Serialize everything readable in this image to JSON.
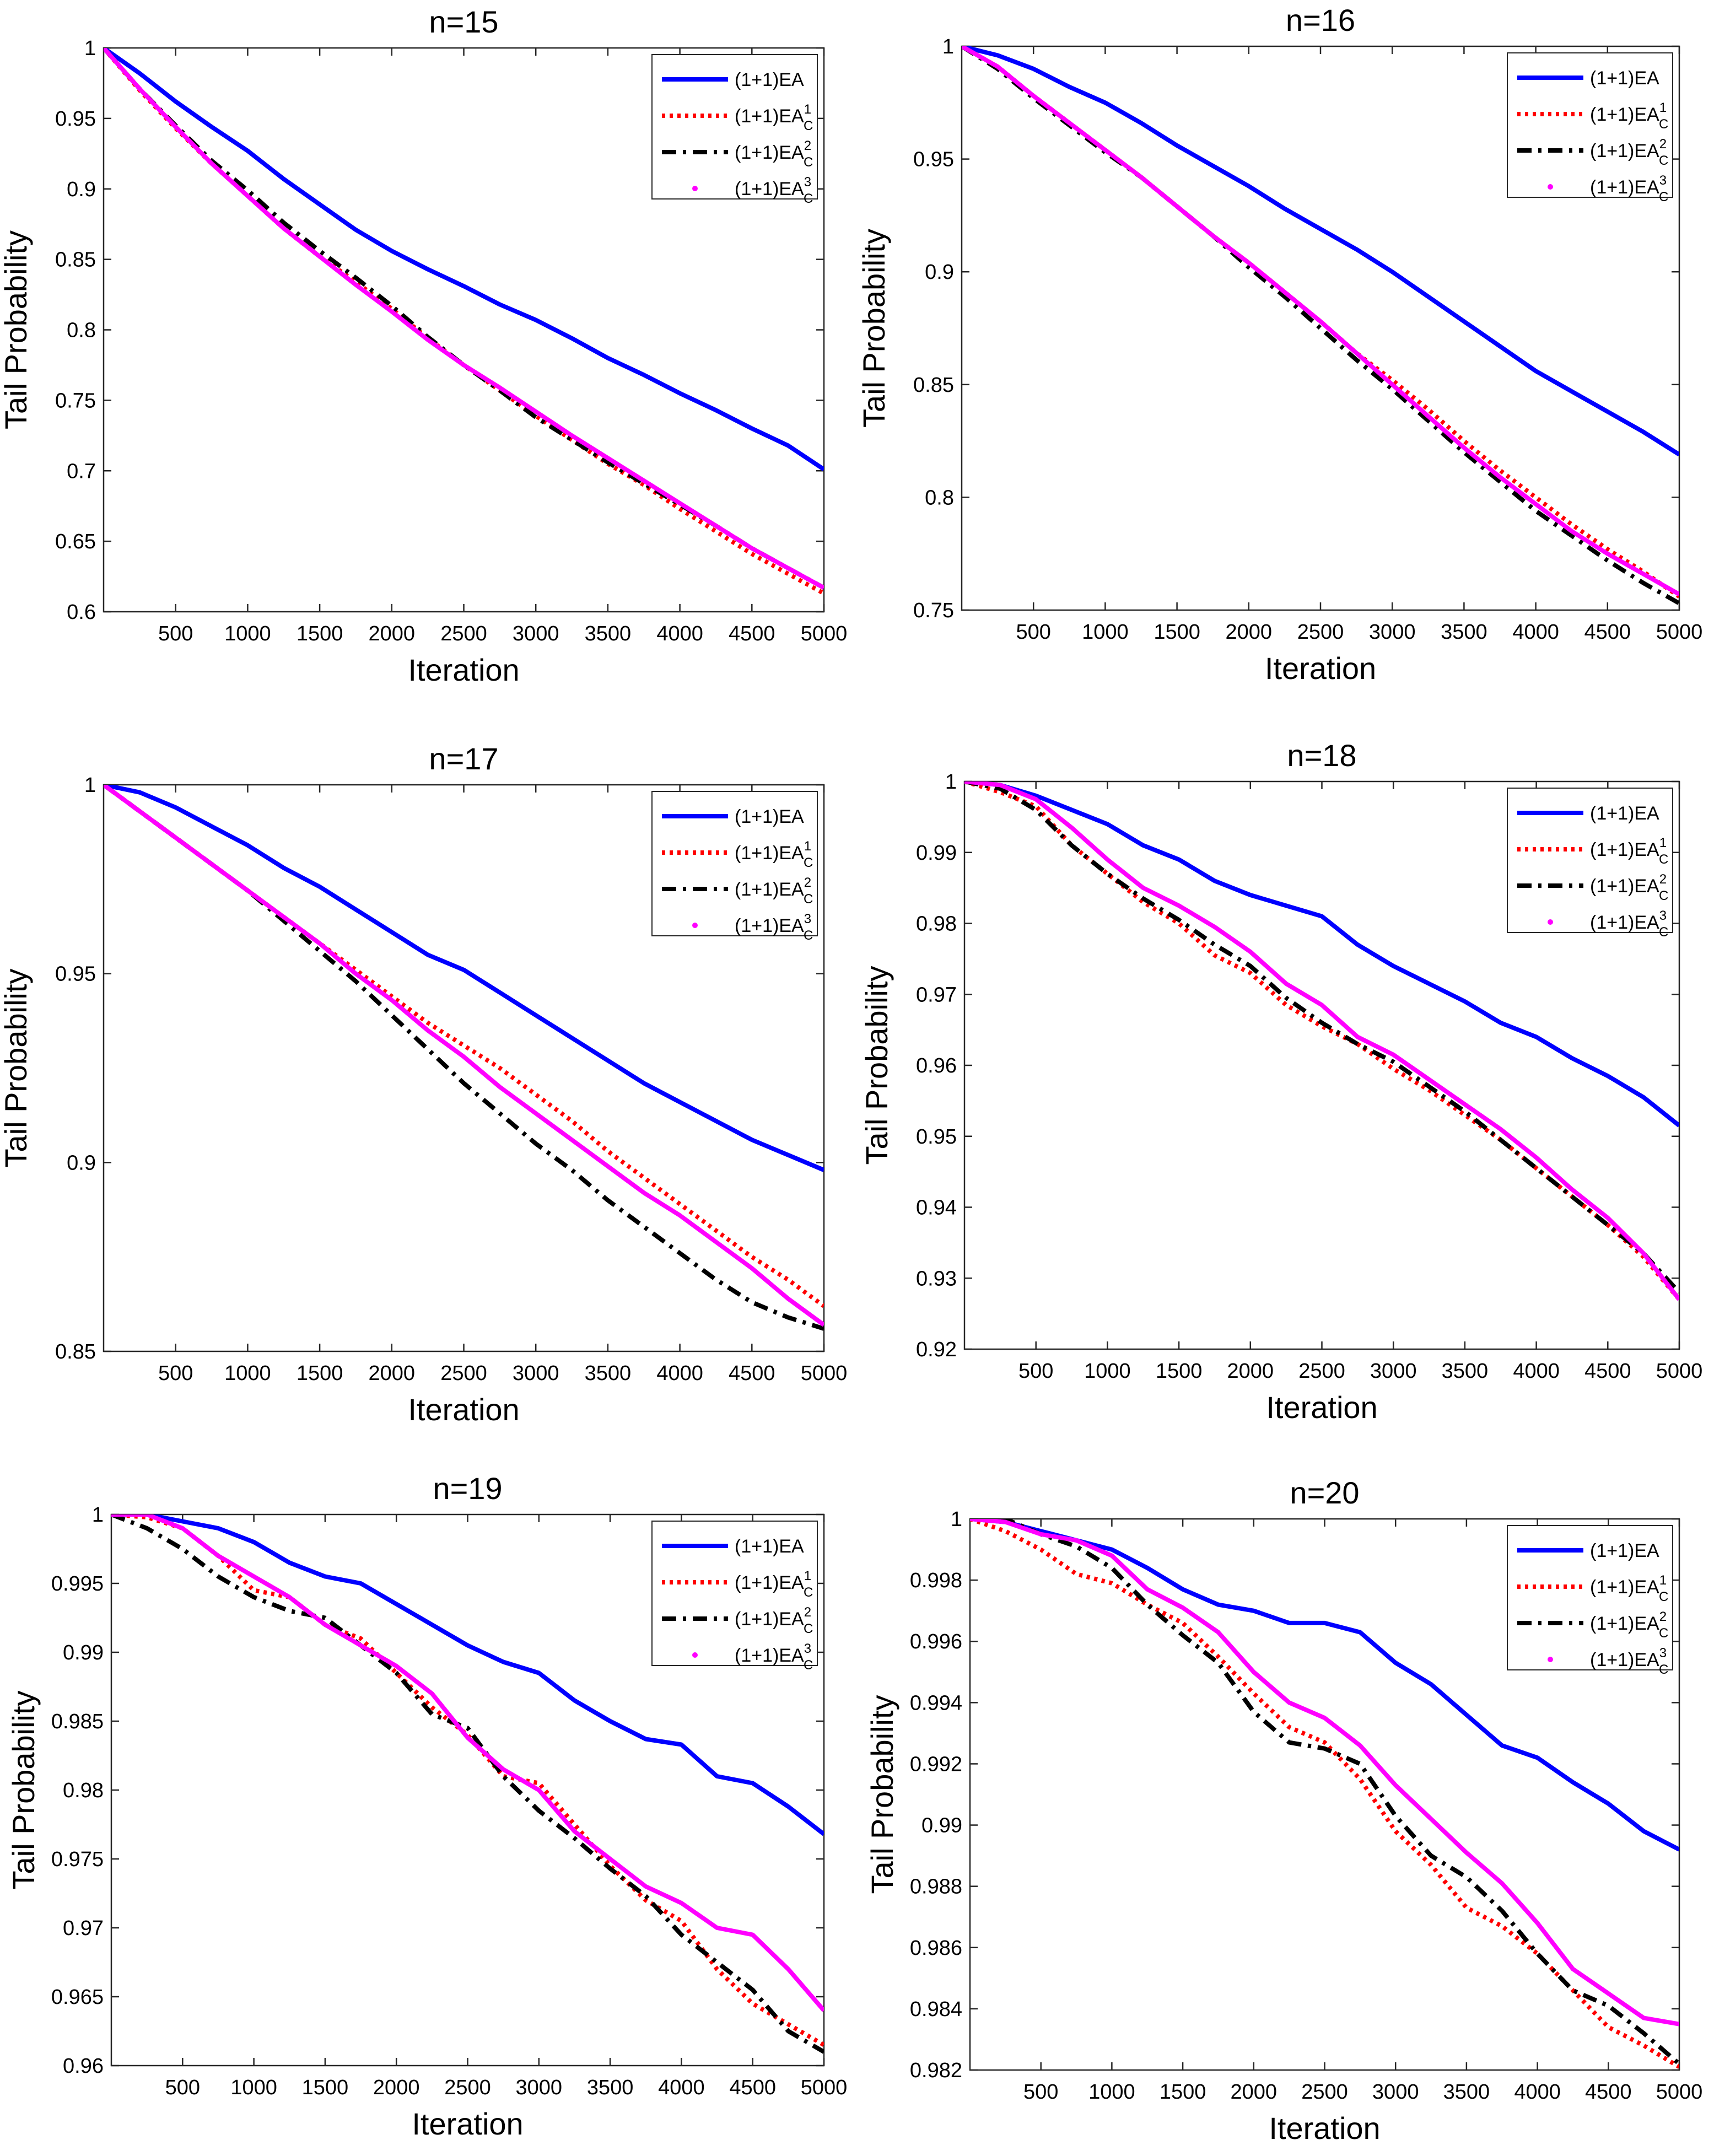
{
  "figure": {
    "legend_items": [
      "(1+1)EA",
      "(1+1)EA",
      "(1+1)EA",
      "(1+1)EA"
    ],
    "legend_subscripts": [
      "",
      "C",
      "C",
      "C"
    ],
    "legend_superscripts": [
      "",
      "1",
      "2",
      "3"
    ],
    "colors": {
      "ea": "#0000ff",
      "ea_c1": "#ff0000",
      "ea_c2": "#000000",
      "ea_c3": "#ff00ff"
    }
  },
  "chart_data": [
    {
      "type": "line",
      "title": "n=15",
      "xlabel": "Iteration",
      "ylabel": "Tail Probability",
      "xlim": [
        0,
        5000
      ],
      "ylim": [
        0.6,
        1.0
      ],
      "xticks": [
        500,
        1000,
        1500,
        2000,
        2500,
        3000,
        3500,
        4000,
        4500,
        5000
      ],
      "yticks": [
        0.6,
        0.65,
        0.7,
        0.75,
        0.8,
        0.85,
        0.9,
        0.95,
        1
      ],
      "ytick_labels": [
        "0.6",
        "0.65",
        "0.7",
        "0.75",
        "0.8",
        "0.85",
        "0.9",
        "0.95",
        "1"
      ],
      "x": [
        0,
        250,
        500,
        750,
        1000,
        1250,
        1500,
        1750,
        2000,
        2250,
        2500,
        2750,
        3000,
        3250,
        3500,
        3750,
        4000,
        4250,
        4500,
        4750,
        5000
      ],
      "series": [
        {
          "name": "(1+1)EA",
          "values": [
            1.0,
            0.982,
            0.962,
            0.944,
            0.927,
            0.907,
            0.889,
            0.871,
            0.856,
            0.843,
            0.831,
            0.818,
            0.807,
            0.794,
            0.78,
            0.768,
            0.755,
            0.743,
            0.73,
            0.718,
            0.701
          ]
        },
        {
          "name": "(1+1)EA_C^1",
          "values": [
            1.0,
            0.97,
            0.943,
            0.918,
            0.895,
            0.872,
            0.852,
            0.834,
            0.815,
            0.794,
            0.775,
            0.757,
            0.739,
            0.722,
            0.705,
            0.69,
            0.673,
            0.657,
            0.641,
            0.627,
            0.613
          ]
        },
        {
          "name": "(1+1)EA_C^2",
          "values": [
            1.0,
            0.971,
            0.945,
            0.92,
            0.899,
            0.876,
            0.856,
            0.837,
            0.817,
            0.795,
            0.775,
            0.757,
            0.738,
            0.722,
            0.706,
            0.691,
            0.676,
            0.661,
            0.645,
            0.631,
            0.617
          ]
        },
        {
          "name": "(1+1)EA_C^3",
          "values": [
            1.0,
            0.971,
            0.944,
            0.918,
            0.895,
            0.872,
            0.852,
            0.832,
            0.813,
            0.793,
            0.775,
            0.759,
            0.742,
            0.725,
            0.709,
            0.693,
            0.677,
            0.661,
            0.645,
            0.631,
            0.617
          ]
        }
      ]
    },
    {
      "type": "line",
      "title": "n=16",
      "xlabel": "Iteration",
      "ylabel": "Tail Probability",
      "xlim": [
        0,
        5000
      ],
      "ylim": [
        0.75,
        1.0
      ],
      "xticks": [
        500,
        1000,
        1500,
        2000,
        2500,
        3000,
        3500,
        4000,
        4500,
        5000
      ],
      "yticks": [
        0.75,
        0.8,
        0.85,
        0.9,
        0.95,
        1
      ],
      "ytick_labels": [
        "0.75",
        "0.8",
        "0.85",
        "0.9",
        "0.95",
        "1"
      ],
      "x": [
        0,
        250,
        500,
        750,
        1000,
        1250,
        1500,
        1750,
        2000,
        2250,
        2500,
        2750,
        3000,
        3250,
        3500,
        3750,
        4000,
        4250,
        4500,
        4750,
        5000
      ],
      "series": [
        {
          "name": "(1+1)EA",
          "values": [
            1.0,
            0.996,
            0.99,
            0.982,
            0.975,
            0.966,
            0.956,
            0.947,
            0.938,
            0.928,
            0.919,
            0.91,
            0.9,
            0.889,
            0.878,
            0.867,
            0.856,
            0.847,
            0.838,
            0.829,
            0.819
          ]
        },
        {
          "name": "(1+1)EA_C^1",
          "values": [
            1.0,
            0.991,
            0.978,
            0.966,
            0.954,
            0.942,
            0.929,
            0.916,
            0.904,
            0.891,
            0.878,
            0.864,
            0.852,
            0.839,
            0.825,
            0.812,
            0.8,
            0.788,
            0.777,
            0.767,
            0.756
          ]
        },
        {
          "name": "(1+1)EA_C^2",
          "values": [
            1.0,
            0.99,
            0.977,
            0.965,
            0.953,
            0.942,
            0.929,
            0.916,
            0.902,
            0.889,
            0.875,
            0.861,
            0.848,
            0.834,
            0.82,
            0.807,
            0.794,
            0.783,
            0.772,
            0.762,
            0.753
          ]
        },
        {
          "name": "(1+1)EA_C^3",
          "values": [
            1.0,
            0.991,
            0.978,
            0.966,
            0.954,
            0.942,
            0.929,
            0.916,
            0.904,
            0.891,
            0.878,
            0.864,
            0.85,
            0.836,
            0.822,
            0.809,
            0.797,
            0.785,
            0.775,
            0.766,
            0.757
          ]
        }
      ]
    },
    {
      "type": "line",
      "title": "n=17",
      "xlabel": "Iteration",
      "ylabel": "Tail Probability",
      "xlim": [
        0,
        5000
      ],
      "ylim": [
        0.85,
        1.0
      ],
      "xticks": [
        500,
        1000,
        1500,
        2000,
        2500,
        3000,
        3500,
        4000,
        4500,
        5000
      ],
      "yticks": [
        0.85,
        0.9,
        0.95,
        1
      ],
      "ytick_labels": [
        "0.85",
        "0.9",
        "0.95",
        "1"
      ],
      "x": [
        0,
        250,
        500,
        750,
        1000,
        1250,
        1500,
        1750,
        2000,
        2250,
        2500,
        2750,
        3000,
        3250,
        3500,
        3750,
        4000,
        4250,
        4500,
        4750,
        5000
      ],
      "series": [
        {
          "name": "(1+1)EA",
          "values": [
            1.0,
            0.998,
            0.994,
            0.989,
            0.984,
            0.978,
            0.973,
            0.967,
            0.961,
            0.955,
            0.951,
            0.945,
            0.939,
            0.933,
            0.927,
            0.921,
            0.916,
            0.911,
            0.906,
            0.902,
            0.898
          ]
        },
        {
          "name": "(1+1)EA_C^1",
          "values": [
            1.0,
            0.993,
            0.986,
            0.979,
            0.972,
            0.965,
            0.958,
            0.951,
            0.944,
            0.937,
            0.931,
            0.925,
            0.918,
            0.911,
            0.903,
            0.896,
            0.889,
            0.882,
            0.875,
            0.869,
            0.862
          ]
        },
        {
          "name": "(1+1)EA_C^2",
          "values": [
            1.0,
            0.993,
            0.986,
            0.979,
            0.972,
            0.964,
            0.956,
            0.948,
            0.939,
            0.93,
            0.921,
            0.913,
            0.905,
            0.898,
            0.89,
            0.883,
            0.876,
            0.869,
            0.863,
            0.859,
            0.856
          ]
        },
        {
          "name": "(1+1)EA_C^3",
          "values": [
            1.0,
            0.993,
            0.986,
            0.979,
            0.972,
            0.965,
            0.958,
            0.95,
            0.943,
            0.935,
            0.928,
            0.92,
            0.913,
            0.906,
            0.899,
            0.892,
            0.886,
            0.879,
            0.872,
            0.864,
            0.857
          ]
        }
      ]
    },
    {
      "type": "line",
      "title": "n=18",
      "xlabel": "Iteration",
      "ylabel": "Tail Probability",
      "xlim": [
        0,
        5000
      ],
      "ylim": [
        0.92,
        1.0
      ],
      "xticks": [
        500,
        1000,
        1500,
        2000,
        2500,
        3000,
        3500,
        4000,
        4500,
        5000
      ],
      "yticks": [
        0.92,
        0.93,
        0.94,
        0.95,
        0.96,
        0.97,
        0.98,
        0.99,
        1
      ],
      "ytick_labels": [
        "0.92",
        "0.93",
        "0.94",
        "0.95",
        "0.96",
        "0.97",
        "0.98",
        "0.99",
        "1"
      ],
      "x": [
        0,
        250,
        500,
        750,
        1000,
        1250,
        1500,
        1750,
        2000,
        2250,
        2500,
        2750,
        3000,
        3250,
        3500,
        3750,
        4000,
        4250,
        4500,
        4750,
        5000
      ],
      "series": [
        {
          "name": "(1+1)EA",
          "values": [
            1.0,
            0.9995,
            0.998,
            0.996,
            0.994,
            0.991,
            0.989,
            0.986,
            0.984,
            0.9825,
            0.981,
            0.977,
            0.974,
            0.9715,
            0.969,
            0.966,
            0.964,
            0.961,
            0.9585,
            0.9555,
            0.9515
          ]
        },
        {
          "name": "(1+1)EA_C^1",
          "values": [
            1.0,
            0.9985,
            0.9965,
            0.991,
            0.987,
            0.983,
            0.98,
            0.9755,
            0.973,
            0.9685,
            0.9655,
            0.963,
            0.9595,
            0.9565,
            0.953,
            0.9495,
            0.9455,
            0.9415,
            0.9375,
            0.933,
            0.927
          ]
        },
        {
          "name": "(1+1)EA_C^2",
          "values": [
            1.0,
            0.999,
            0.996,
            0.991,
            0.987,
            0.9835,
            0.9805,
            0.977,
            0.974,
            0.9695,
            0.966,
            0.963,
            0.9605,
            0.957,
            0.9535,
            0.9495,
            0.9455,
            0.9415,
            0.9375,
            0.9335,
            0.928
          ]
        },
        {
          "name": "(1+1)EA_C^3",
          "values": [
            1.0,
            0.9995,
            0.9975,
            0.9935,
            0.989,
            0.985,
            0.9825,
            0.9795,
            0.976,
            0.9715,
            0.9685,
            0.964,
            0.9615,
            0.958,
            0.9545,
            0.951,
            0.947,
            0.9425,
            0.9385,
            0.9335,
            0.927
          ]
        }
      ]
    },
    {
      "type": "line",
      "title": "n=19",
      "xlabel": "Iteration",
      "ylabel": "Tail Probability",
      "xlim": [
        0,
        5000
      ],
      "ylim": [
        0.96,
        1.0
      ],
      "xticks": [
        500,
        1000,
        1500,
        2000,
        2500,
        3000,
        3500,
        4000,
        4500,
        5000
      ],
      "yticks": [
        0.96,
        0.965,
        0.97,
        0.975,
        0.98,
        0.985,
        0.99,
        0.995,
        1
      ],
      "ytick_labels": [
        "0.96",
        "0.965",
        "0.97",
        "0.975",
        "0.98",
        "0.985",
        "0.99",
        "0.995",
        "1"
      ],
      "x": [
        0,
        250,
        500,
        750,
        1000,
        1250,
        1500,
        1750,
        2000,
        2250,
        2500,
        2750,
        3000,
        3250,
        3500,
        3750,
        4000,
        4250,
        4500,
        4750,
        5000
      ],
      "series": [
        {
          "name": "(1+1)EA",
          "values": [
            1.0,
            1.0,
            0.9995,
            0.999,
            0.998,
            0.9965,
            0.9955,
            0.995,
            0.9935,
            0.992,
            0.9905,
            0.9893,
            0.9885,
            0.9865,
            0.985,
            0.9837,
            0.9833,
            0.981,
            0.9805,
            0.9788,
            0.9768
          ]
        },
        {
          "name": "(1+1)EA_C^1",
          "values": [
            1.0,
            0.9998,
            0.999,
            0.997,
            0.9945,
            0.994,
            0.992,
            0.991,
            0.9885,
            0.986,
            0.984,
            0.981,
            0.9805,
            0.9775,
            0.9745,
            0.972,
            0.9705,
            0.967,
            0.9645,
            0.963,
            0.9615
          ]
        },
        {
          "name": "(1+1)EA_C^2",
          "values": [
            1.0,
            0.999,
            0.9975,
            0.9955,
            0.994,
            0.993,
            0.9925,
            0.9905,
            0.9885,
            0.9855,
            0.9845,
            0.981,
            0.9785,
            0.9765,
            0.9743,
            0.9723,
            0.9695,
            0.9675,
            0.9655,
            0.9625,
            0.961
          ]
        },
        {
          "name": "(1+1)EA_C^3",
          "values": [
            1.0,
            1.0,
            0.999,
            0.997,
            0.9955,
            0.994,
            0.992,
            0.9905,
            0.989,
            0.987,
            0.9838,
            0.9815,
            0.98,
            0.977,
            0.975,
            0.973,
            0.9718,
            0.97,
            0.9695,
            0.967,
            0.964
          ]
        }
      ]
    },
    {
      "type": "line",
      "title": "n=20",
      "xlabel": "Iteration",
      "ylabel": "Tail Probability",
      "xlim": [
        0,
        5000
      ],
      "ylim": [
        0.982,
        1.0
      ],
      "xticks": [
        500,
        1000,
        1500,
        2000,
        2500,
        3000,
        3500,
        4000,
        4500,
        5000
      ],
      "yticks": [
        0.982,
        0.984,
        0.986,
        0.988,
        0.99,
        0.992,
        0.994,
        0.996,
        0.998,
        1
      ],
      "ytick_labels": [
        "0.982",
        "0.984",
        "0.986",
        "0.988",
        "0.99",
        "0.992",
        "0.994",
        "0.996",
        "0.998",
        "1"
      ],
      "x": [
        0,
        250,
        500,
        750,
        1000,
        1250,
        1500,
        1750,
        2000,
        2250,
        2500,
        2750,
        3000,
        3250,
        3500,
        3750,
        4000,
        4250,
        4500,
        4750,
        5000
      ],
      "series": [
        {
          "name": "(1+1)EA",
          "values": [
            1.0,
            0.9999,
            0.9996,
            0.9993,
            0.999,
            0.9984,
            0.9977,
            0.9972,
            0.997,
            0.9966,
            0.9966,
            0.9963,
            0.9953,
            0.9946,
            0.9936,
            0.9926,
            0.9922,
            0.9914,
            0.9907,
            0.9898,
            0.9892
          ]
        },
        {
          "name": "(1+1)EA_C^1",
          "values": [
            1.0,
            0.9996,
            0.999,
            0.9982,
            0.9979,
            0.9972,
            0.9966,
            0.9955,
            0.9943,
            0.9932,
            0.9927,
            0.9915,
            0.9898,
            0.9887,
            0.9873,
            0.9867,
            0.9858,
            0.9846,
            0.9834,
            0.9828,
            0.9821
          ]
        },
        {
          "name": "(1+1)EA_C^2",
          "values": [
            1.0,
            1.0,
            0.9995,
            0.9991,
            0.9984,
            0.9972,
            0.9962,
            0.9953,
            0.9937,
            0.9927,
            0.9925,
            0.992,
            0.9903,
            0.989,
            0.9883,
            0.9872,
            0.9858,
            0.9846,
            0.9841,
            0.9832,
            0.9822
          ]
        },
        {
          "name": "(1+1)EA_C^3",
          "values": [
            1.0,
            0.9999,
            0.9995,
            0.9993,
            0.9988,
            0.9977,
            0.9971,
            0.9963,
            0.995,
            0.994,
            0.9935,
            0.9926,
            0.9913,
            0.9902,
            0.9891,
            0.9881,
            0.9868,
            0.9853,
            0.9845,
            0.9837,
            0.9835
          ]
        }
      ]
    }
  ]
}
